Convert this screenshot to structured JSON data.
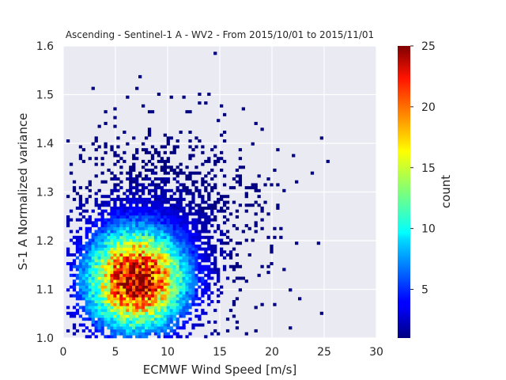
{
  "chart_data": {
    "type": "heatmap",
    "title": "Ascending - Sentinel-1 A - WV2 - From 2015/10/01 to 2015/11/01",
    "xlabel": "ECMWF Wind Speed [m/s]",
    "ylabel": "S-1 A Normalized variance",
    "xlim": [
      0,
      30
    ],
    "ylim": [
      1.0,
      1.6
    ],
    "xticks": [
      "0",
      "5",
      "10",
      "15",
      "20",
      "25",
      "30"
    ],
    "xtick_values": [
      0,
      5,
      10,
      15,
      20,
      25,
      30
    ],
    "yticks": [
      "1.0",
      "1.1",
      "1.2",
      "1.3",
      "1.4",
      "1.5",
      "1.6"
    ],
    "ytick_values": [
      1.0,
      1.1,
      1.2,
      1.3,
      1.4,
      1.5,
      1.6
    ],
    "grid": true,
    "bins": {
      "x_edges": {
        "start": 0,
        "step": 0.3,
        "count": 100
      },
      "y_edges": {
        "start": 1.0,
        "step": 0.006,
        "count": 100
      }
    },
    "count_peak": {
      "x": 7.0,
      "y": 1.12,
      "count": 23
    },
    "colorbar": {
      "label": "count",
      "min": 1,
      "max": 25,
      "ticks": [
        "5",
        "10",
        "15",
        "20",
        "25"
      ],
      "tick_values": [
        5,
        10,
        15,
        20,
        25
      ],
      "colormap": "jet"
    },
    "background_color": "#eaeaf2",
    "grid_color": "#ffffff"
  }
}
